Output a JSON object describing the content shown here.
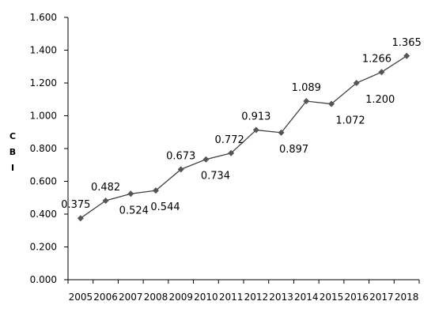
{
  "chart_data": {
    "type": "line",
    "x": [
      "2005",
      "2006",
      "2007",
      "2008",
      "2009",
      "2010",
      "2011",
      "2012",
      "2013",
      "2014",
      "2015",
      "2016",
      "2017",
      "2018"
    ],
    "series": [
      {
        "values": [
          0.375,
          0.482,
          0.524,
          0.544,
          0.673,
          0.734,
          0.772,
          0.913,
          0.897,
          1.089,
          1.072,
          1.2,
          1.266,
          1.365
        ]
      }
    ],
    "data_labels": [
      "0.375",
      "0.482",
      "0.524",
      "0.544",
      "0.673",
      "0.734",
      "0.772",
      "0.913",
      "0.897",
      "1.089",
      "1.072",
      "1.200",
      "1.266",
      "1.365"
    ],
    "ylabel": "CBI",
    "ylabel_chars": [
      "C",
      "B",
      "I"
    ],
    "ylim": [
      0,
      1.6
    ],
    "yticks": [
      "0.000",
      "0.200",
      "0.400",
      "0.600",
      "0.800",
      "1.000",
      "1.200",
      "1.400",
      "1.600"
    ],
    "ytick_values": [
      0,
      0.2,
      0.4,
      0.6,
      0.8,
      1.0,
      1.2,
      1.4,
      1.6
    ],
    "grid": false,
    "legend": "none",
    "line_color": "#404040",
    "marker": "diamond"
  }
}
